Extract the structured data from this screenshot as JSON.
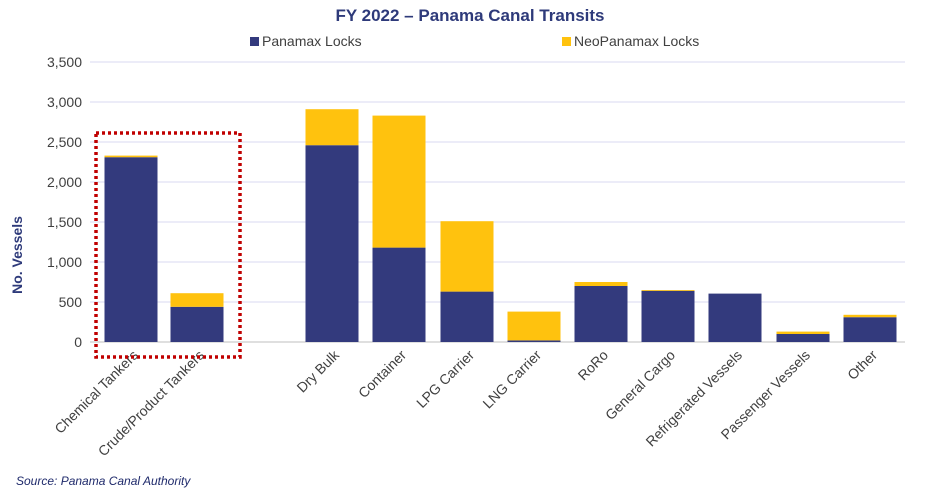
{
  "colors": {
    "panamax": "#333A7D",
    "neopanamax": "#FFC20E",
    "title": "#2E3A7A",
    "text": "#404040",
    "grid": "#D9D9F0",
    "highlight": "#C00000"
  },
  "chart_data": {
    "type": "bar",
    "stacked": true,
    "title": "FY 2022 – Panama Canal Transits",
    "xlabel": "",
    "ylabel": "No. Vessels",
    "ylim": [
      0,
      3500
    ],
    "yticks": [
      "0",
      "500",
      "1,000",
      "1,500",
      "2,000",
      "2,500",
      "3,000",
      "3,500"
    ],
    "grid": true,
    "legend_position": "top",
    "categories": [
      "Chemical Tankers",
      "Crude/Product Tankers",
      "Dry Bulk",
      "Container",
      "LPG Carrier",
      "LNG Carrier",
      "RoRo",
      "General Cargo",
      "Refrigerated Vessels",
      "Passenger Vessels",
      "Other"
    ],
    "series": [
      {
        "name": "Panamax Locks",
        "values": [
          2310,
          440,
          2460,
          1180,
          630,
          20,
          700,
          640,
          605,
          100,
          310
        ]
      },
      {
        "name": "NeoPanamax Locks",
        "values": [
          20,
          170,
          450,
          1650,
          880,
          360,
          50,
          10,
          0,
          30,
          30
        ]
      }
    ],
    "annotation": "dotted box highlighting Chemical Tankers and Crude/Product Tankers",
    "source": "Source: Panama Canal Authority"
  }
}
